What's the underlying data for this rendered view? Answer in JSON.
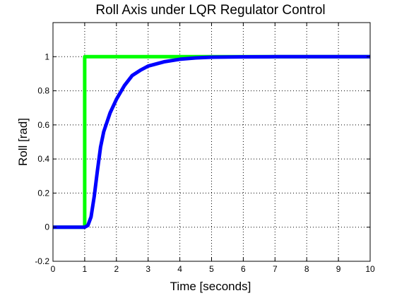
{
  "chart_data": {
    "type": "line",
    "title": "Roll Axis under LQR Regulator Control",
    "xlabel": "Time [seconds]",
    "ylabel": "Roll [rad]",
    "xlim": [
      0,
      10
    ],
    "ylim": [
      -0.2,
      1.2
    ],
    "x_ticks": [
      0,
      1,
      2,
      3,
      4,
      5,
      6,
      7,
      8,
      9,
      10
    ],
    "y_ticks": [
      -0.2,
      0,
      0.2,
      0.4,
      0.6,
      0.8,
      1
    ],
    "x_tick_labels": [
      "0",
      "1",
      "2",
      "3",
      "4",
      "5",
      "6",
      "7",
      "8",
      "9",
      "10"
    ],
    "y_tick_labels": [
      "-0.2",
      "0",
      "0.2",
      "0.4",
      "0.6",
      "0.8",
      "1"
    ],
    "grid": true,
    "grid_style": "dotted",
    "series": [
      {
        "color": "#00ff00",
        "x": [
          0,
          1.0,
          1.0,
          10
        ],
        "y": [
          0,
          0,
          1,
          1
        ]
      },
      {
        "color": "#0000ff",
        "x": [
          0,
          1.0,
          1.1,
          1.2,
          1.3,
          1.4,
          1.5,
          1.6,
          1.8,
          2.0,
          2.25,
          2.5,
          2.75,
          3.0,
          3.5,
          4.0,
          4.5,
          5.0,
          6.0,
          7.0,
          8.0,
          9.0,
          10
        ],
        "y": [
          0,
          0,
          0.01,
          0.06,
          0.18,
          0.33,
          0.47,
          0.56,
          0.67,
          0.75,
          0.83,
          0.89,
          0.92,
          0.945,
          0.97,
          0.985,
          0.993,
          0.997,
          0.999,
          1.0,
          1.0,
          1.0,
          1.0
        ]
      }
    ]
  }
}
